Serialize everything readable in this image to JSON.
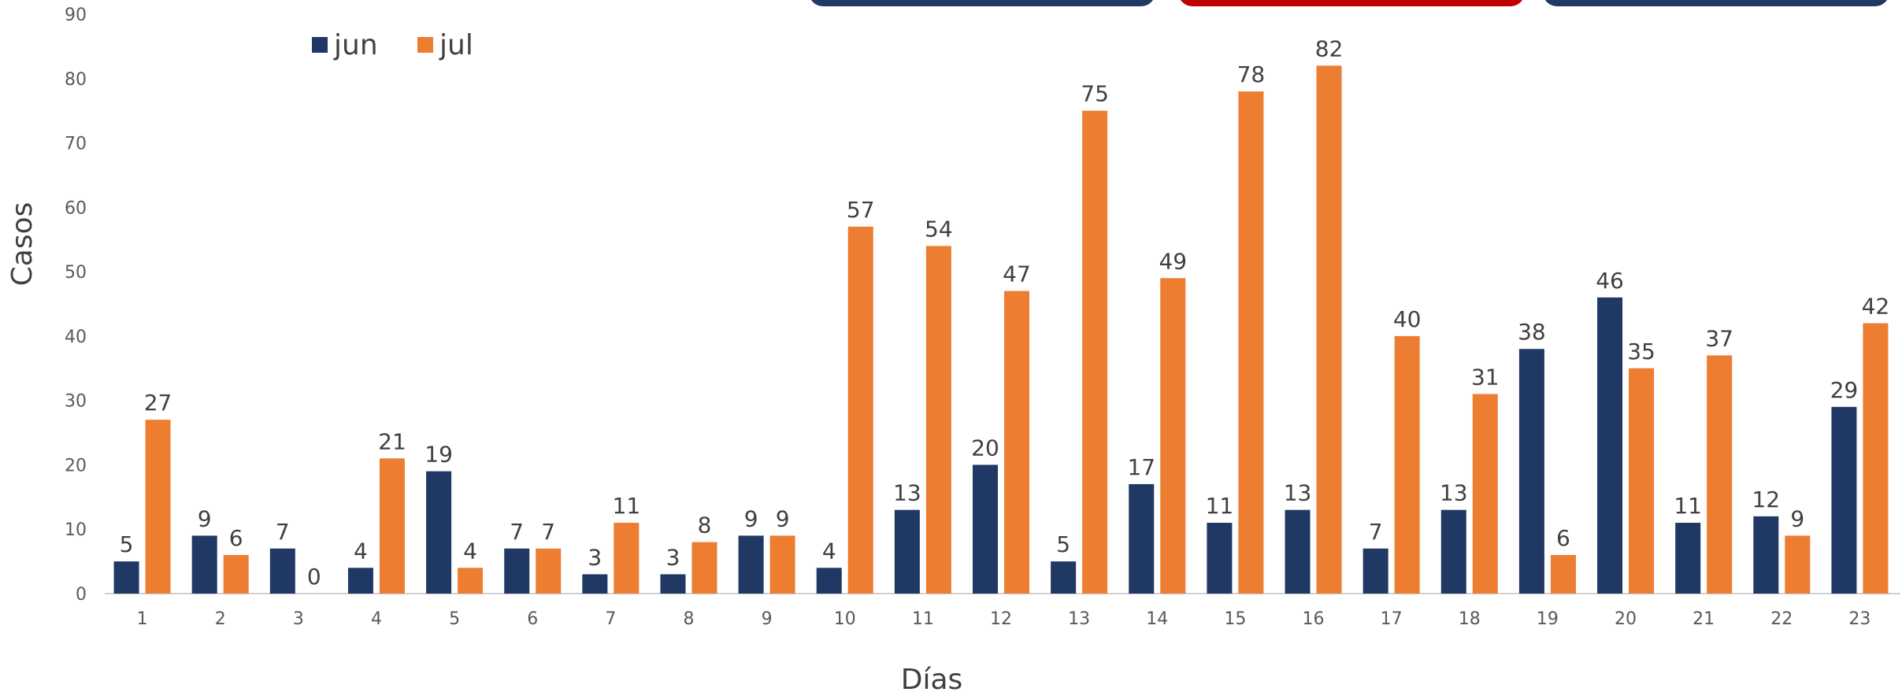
{
  "chart_data": {
    "type": "bar",
    "title": "",
    "xlabel": "Días",
    "ylabel": "Casos",
    "ylim": [
      0,
      90
    ],
    "yticks": [
      0,
      10,
      20,
      30,
      40,
      50,
      60,
      70,
      80,
      90
    ],
    "categories": [
      "1",
      "2",
      "3",
      "4",
      "5",
      "6",
      "7",
      "8",
      "9",
      "10",
      "11",
      "12",
      "13",
      "14",
      "15",
      "16",
      "17",
      "18",
      "19",
      "20",
      "21",
      "22",
      "23"
    ],
    "series": [
      {
        "name": "jun",
        "color": "#203864",
        "values": [
          5,
          9,
          7,
          4,
          19,
          7,
          3,
          3,
          9,
          4,
          13,
          20,
          5,
          17,
          11,
          13,
          7,
          13,
          38,
          46,
          11,
          12,
          29
        ]
      },
      {
        "name": "jul",
        "color": "#ED7D31",
        "values": [
          27,
          6,
          0,
          21,
          4,
          7,
          11,
          8,
          9,
          57,
          54,
          47,
          75,
          49,
          78,
          82,
          40,
          31,
          6,
          35,
          37,
          9,
          42
        ]
      }
    ],
    "legend_position": "top-left",
    "grid": false,
    "data_labels": true
  },
  "decor": {
    "top_tabs": [
      {
        "color": "#203864"
      },
      {
        "color": "#C00000"
      },
      {
        "color": "#203864"
      }
    ]
  }
}
